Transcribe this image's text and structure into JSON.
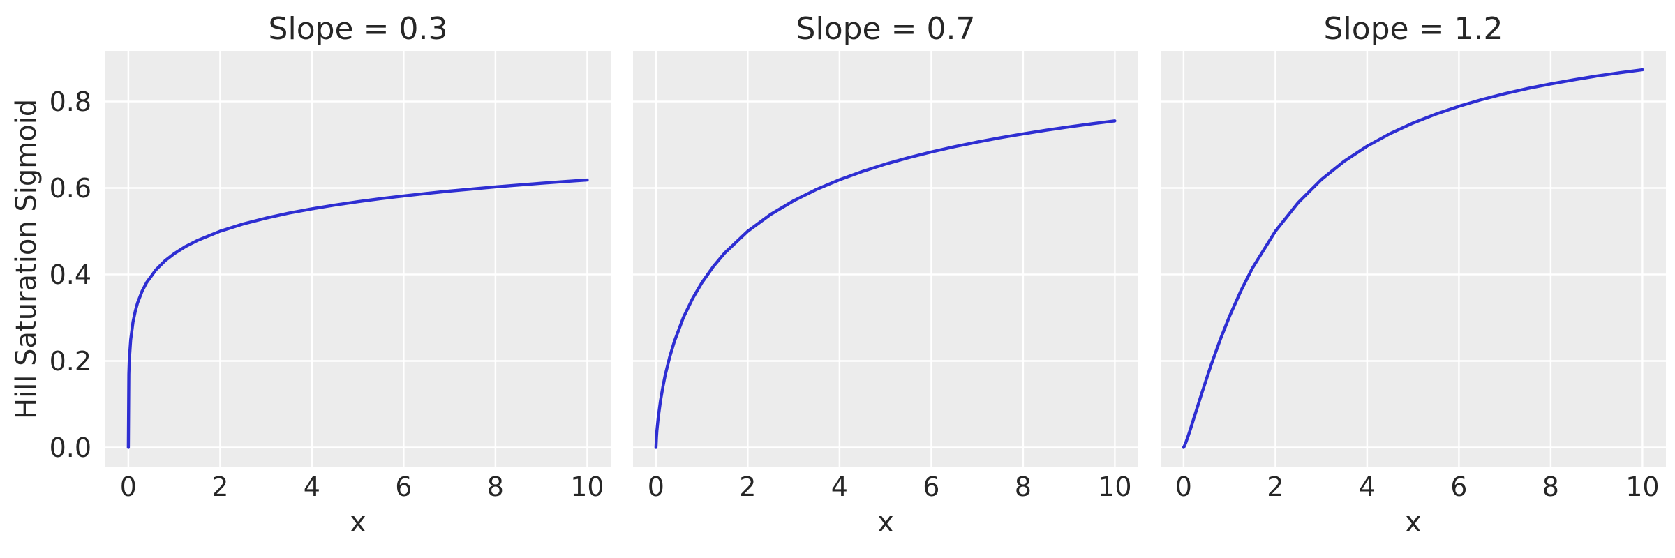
{
  "chart_data": {
    "type": "line",
    "layout": "1x3-subplots-shared-y",
    "subplot_titles": [
      "Slope = 0.3",
      "Slope = 0.7",
      "Slope = 1.2"
    ],
    "xlabel": "x",
    "ylabel": "Hill Saturation Sigmoid",
    "xlim": [
      -0.5,
      10.5
    ],
    "ylim": [
      -0.044,
      0.917
    ],
    "xticks": [
      0,
      2,
      4,
      6,
      8,
      10
    ],
    "xtick_labels": [
      "0",
      "2",
      "4",
      "6",
      "8",
      "10"
    ],
    "yticks": [
      0.0,
      0.2,
      0.4,
      0.6,
      0.8
    ],
    "ytick_labels": [
      "0.0",
      "0.2",
      "0.4",
      "0.6",
      "0.8"
    ],
    "grid": true,
    "legend_visible": false,
    "description": "Hill saturation sigmoid y = x^s / (x^s + 2^s) for slopes s = 0.3, 0.7, 1.2; half-saturation at x = 2 where y = 0.5",
    "styles": {
      "line_color": "#2e2ed2",
      "plot_bg": "#ececec",
      "grid_color": "#ffffff",
      "text_color": "#262626",
      "fig_bg": "#ffffff"
    },
    "x": [
      0,
      0.01,
      0.02,
      0.05,
      0.1,
      0.15,
      0.2,
      0.3,
      0.4,
      0.6,
      0.8,
      1,
      1.25,
      1.5,
      2,
      2.5,
      3,
      3.5,
      4,
      4.5,
      5,
      5.5,
      6,
      6.5,
      7,
      7.5,
      8,
      8.5,
      9,
      9.5,
      10
    ],
    "series": [
      {
        "name": "Slope = 0.3",
        "slope": 0.3,
        "values": [
          0,
          0.1695,
          0.2007,
          0.2485,
          0.2893,
          0.3149,
          0.3338,
          0.3614,
          0.3816,
          0.4107,
          0.4317,
          0.4482,
          0.4648,
          0.4784,
          0.5,
          0.5167,
          0.5304,
          0.5419,
          0.5518,
          0.5605,
          0.5683,
          0.5753,
          0.5816,
          0.5874,
          0.5929,
          0.5978,
          0.6025,
          0.6068,
          0.611,
          0.6148,
          0.6184
        ]
      },
      {
        "name": "Slope = 0.7",
        "slope": 0.7,
        "values": [
          0,
          0.0239,
          0.0383,
          0.0703,
          0.1094,
          0.1402,
          0.1663,
          0.2095,
          0.2448,
          0.301,
          0.3449,
          0.381,
          0.4185,
          0.4498,
          0.5,
          0.539,
          0.5705,
          0.5967,
          0.619,
          0.6382,
          0.6551,
          0.67,
          0.6833,
          0.6953,
          0.7062,
          0.7161,
          0.7252,
          0.7336,
          0.7413,
          0.7485,
          0.7552
        ]
      },
      {
        "name": "Slope = 1.2",
        "slope": 1.2,
        "values": [
          0,
          0.0017,
          0.004,
          0.0118,
          0.0267,
          0.0428,
          0.0593,
          0.0931,
          0.1266,
          0.1908,
          0.2499,
          0.3033,
          0.3626,
          0.4146,
          0.5,
          0.5665,
          0.6193,
          0.6619,
          0.6967,
          0.7258,
          0.7502,
          0.771,
          0.7889,
          0.8045,
          0.8181,
          0.8301,
          0.8407,
          0.8502,
          0.8588,
          0.8664,
          0.8734
        ]
      }
    ]
  }
}
